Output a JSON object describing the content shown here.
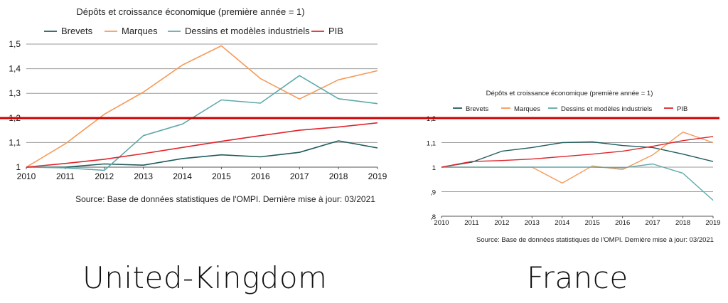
{
  "chart_data": [
    {
      "type": "line",
      "title": "Dépôts et croissance économique (première année = 1)",
      "x": [
        2010,
        2011,
        2012,
        2013,
        2014,
        2015,
        2016,
        2017,
        2018,
        2019
      ],
      "x_tick_labels": [
        "2010",
        "2011",
        "2012",
        "2013",
        "2014",
        "2015",
        "2016",
        "2017",
        "2018",
        "2019"
      ],
      "ylim": [
        1,
        1.5
      ],
      "y_ticks": [
        1,
        1.1,
        1.2,
        1.3,
        1.4,
        1.5
      ],
      "y_tick_labels": [
        "1",
        "1,1",
        "1,2",
        "1,3",
        "1,4",
        "1,5"
      ],
      "grid": true,
      "legend_position": "top",
      "series": [
        {
          "name": "Brevets",
          "color": "#1f5c5c",
          "values": [
            1.0,
            1.0,
            1.013,
            1.008,
            1.035,
            1.05,
            1.042,
            1.06,
            1.107,
            1.078
          ]
        },
        {
          "name": "Marques",
          "color": "#f59a5a",
          "values": [
            1.0,
            1.095,
            1.215,
            1.305,
            1.415,
            1.493,
            1.36,
            1.277,
            1.355,
            1.392
          ]
        },
        {
          "name": "Dessins et modèles industriels",
          "color": "#5fa9a9",
          "values": [
            1.0,
            0.997,
            0.987,
            1.128,
            1.175,
            1.273,
            1.26,
            1.372,
            1.278,
            1.258
          ]
        },
        {
          "name": "PIB",
          "color": "#e0242b",
          "values": [
            1.0,
            1.015,
            1.032,
            1.055,
            1.08,
            1.105,
            1.128,
            1.15,
            1.163,
            1.18
          ]
        }
      ],
      "source": "Source: Base de données statistiques de l'OMPI.  Dernière mise à jour: 03/2021"
    },
    {
      "type": "line",
      "title": "Dépôts et croissance économique (première année = 1)",
      "x": [
        2010,
        2011,
        2012,
        2013,
        2014,
        2015,
        2016,
        2017,
        2018,
        2019
      ],
      "x_tick_labels": [
        "2010",
        "2011",
        "2012",
        "2013",
        "2014",
        "2015",
        "2016",
        "2017",
        "2018",
        "2019"
      ],
      "ylim": [
        0.8,
        1.2
      ],
      "y_ticks": [
        0.8,
        0.9,
        1.0,
        1.1,
        1.2
      ],
      "y_tick_labels": [
        ",8",
        ",9",
        "1",
        "1,1",
        "1,2"
      ],
      "grid": true,
      "legend_position": "top",
      "series": [
        {
          "name": "Brevets",
          "color": "#1f5c5c",
          "values": [
            1.0,
            1.02,
            1.065,
            1.08,
            1.1,
            1.103,
            1.088,
            1.08,
            1.053,
            1.023
          ]
        },
        {
          "name": "Marques",
          "color": "#f59a5a",
          "values": [
            1.0,
            1.0,
            1.0,
            1.0,
            0.935,
            1.005,
            0.99,
            1.05,
            1.143,
            1.1
          ]
        },
        {
          "name": "Dessins et modèles industriels",
          "color": "#5fa9a9",
          "values": [
            1.0,
            1.0,
            1.0,
            1.0,
            1.0,
            1.0,
            0.997,
            1.013,
            0.975,
            0.865
          ]
        },
        {
          "name": "PIB",
          "color": "#e0242b",
          "values": [
            1.0,
            1.023,
            1.027,
            1.033,
            1.043,
            1.053,
            1.065,
            1.085,
            1.108,
            1.125
          ]
        }
      ],
      "source": "Source: Base de données statistiques de l'OMPI.  Dernière mise à jour: 03/2021"
    }
  ],
  "labels": {
    "left_country": "United-Kingdom",
    "right_country": "France"
  },
  "reference_line_color": "#cc0000"
}
